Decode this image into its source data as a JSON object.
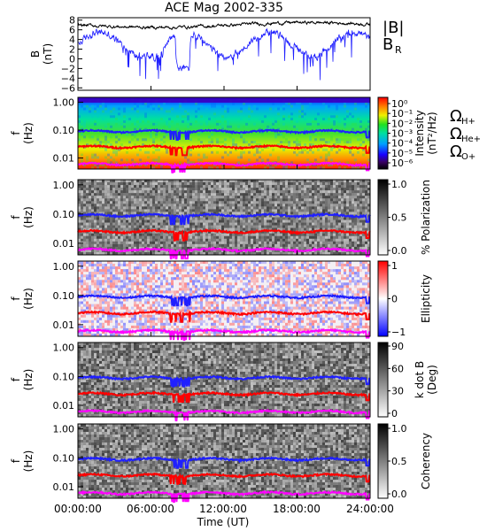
{
  "title": "ACE Mag 2002-335",
  "xaxis": {
    "label": "Time (UT)",
    "ticks": [
      "00:00:00",
      "06:00:00",
      "12:00:00",
      "18:00:00",
      "24:00:00"
    ],
    "range_hours": [
      0,
      24
    ]
  },
  "colors": {
    "B_total": "#000000",
    "B_R": "#1f1fff",
    "cyclotron_H": "#1f1fff",
    "cyclotron_He": "#ff0000",
    "cyclotron_O": "#ff00ff"
  },
  "chart_data": [
    {
      "type": "line",
      "panel": "magnetic-field",
      "ylabel": "B\n(nT)",
      "ylim": [
        -6.5,
        8.5
      ],
      "yticks": [
        8,
        6,
        4,
        2,
        0,
        -2,
        -4,
        -6
      ],
      "legend": [
        {
          "label": "|B|",
          "color": "#000000"
        },
        {
          "label": "B",
          "sub": "R",
          "color": "#1f1fff"
        }
      ],
      "series": [
        {
          "name": "|B|",
          "approx_level_nT": 6.5,
          "range_nT": [
            5.5,
            8.0
          ]
        },
        {
          "name": "B_R",
          "approx_level_nT": 3.5,
          "range_nT": [
            -6.0,
            7.5
          ]
        }
      ]
    },
    {
      "type": "heatmap",
      "panel": "intensity",
      "ylabel": "f\n(Hz)",
      "yscale": "log",
      "yticks": [
        "1.00",
        "0.10",
        "0.01"
      ],
      "colorbar": {
        "label": "Intensity\n(nT²/Hz)",
        "ticks": [
          "10⁰",
          "10⁻¹",
          "10⁻²",
          "10⁻³",
          "10⁻⁴",
          "10⁻⁵",
          "10⁻⁶"
        ],
        "scale": "rainbow"
      },
      "overlay_legend": [
        {
          "label": "Ω",
          "sub": "H+",
          "color": "#1f1fff"
        },
        {
          "label": "Ω",
          "sub": "He+",
          "color": "#ff0000"
        },
        {
          "label": "Ω",
          "sub": "O+",
          "color": "#ff00ff"
        }
      ]
    },
    {
      "type": "heatmap",
      "panel": "polarization",
      "ylabel": "f\n(Hz)",
      "yscale": "log",
      "yticks": [
        "1.00",
        "0.10",
        "0.01"
      ],
      "colorbar": {
        "label": "% Polarization",
        "ticks": [
          "1.0",
          "0.5",
          "0.0"
        ],
        "scale": "grayscale"
      }
    },
    {
      "type": "heatmap",
      "panel": "ellipticity",
      "ylabel": "f\n(Hz)",
      "yscale": "log",
      "yticks": [
        "1.00",
        "0.10",
        "0.01"
      ],
      "colorbar": {
        "label": "Ellipticity",
        "ticks": [
          "1",
          "0",
          "−1"
        ],
        "scale": "blue-white-red"
      }
    },
    {
      "type": "heatmap",
      "panel": "kdotb",
      "ylabel": "f\n(Hz)",
      "yscale": "log",
      "yticks": [
        "1.00",
        "0.10",
        "0.01"
      ],
      "colorbar": {
        "label": "k dot B\n(Deg)",
        "ticks": [
          "90",
          "60",
          "30",
          "0"
        ],
        "scale": "grayscale"
      }
    },
    {
      "type": "heatmap",
      "panel": "coherency",
      "ylabel": "f\n(Hz)",
      "yscale": "log",
      "yticks": [
        "1.00",
        "0.10",
        "0.01"
      ],
      "colorbar": {
        "label": "Coherency",
        "ticks": [
          "1.0",
          "0.5",
          "0.0"
        ],
        "scale": "grayscale"
      }
    }
  ],
  "cyclotron_lines_Hz": {
    "H+": 0.09,
    "He+": 0.025,
    "O+": 0.006
  }
}
